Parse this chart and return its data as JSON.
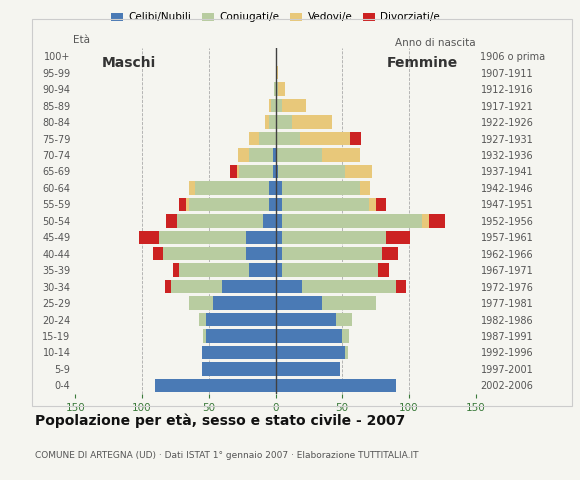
{
  "age_groups": [
    "0-4",
    "5-9",
    "10-14",
    "15-19",
    "20-24",
    "25-29",
    "30-34",
    "35-39",
    "40-44",
    "45-49",
    "50-54",
    "55-59",
    "60-64",
    "65-69",
    "70-74",
    "75-79",
    "80-84",
    "85-89",
    "90-94",
    "95-99",
    "100+"
  ],
  "birth_years": [
    "2002-2006",
    "1997-2001",
    "1992-1996",
    "1987-1991",
    "1982-1986",
    "1977-1981",
    "1972-1976",
    "1967-1971",
    "1962-1966",
    "1957-1961",
    "1952-1956",
    "1947-1951",
    "1942-1946",
    "1937-1941",
    "1932-1936",
    "1927-1931",
    "1922-1926",
    "1917-1921",
    "1912-1916",
    "1907-1911",
    "1906 o prima"
  ],
  "male_celibi": [
    90,
    55,
    55,
    52,
    52,
    47,
    40,
    20,
    22,
    22,
    9,
    5,
    5,
    2,
    2,
    0,
    0,
    0,
    0,
    0,
    0
  ],
  "male_coniugati": [
    0,
    0,
    0,
    2,
    5,
    18,
    38,
    52,
    62,
    65,
    65,
    60,
    55,
    25,
    18,
    12,
    5,
    3,
    1,
    0,
    0
  ],
  "male_vedovi": [
    0,
    0,
    0,
    0,
    0,
    0,
    0,
    0,
    0,
    0,
    0,
    2,
    5,
    2,
    8,
    8,
    3,
    2,
    0,
    0,
    0
  ],
  "male_divorziati": [
    0,
    0,
    0,
    0,
    0,
    0,
    5,
    5,
    8,
    15,
    8,
    5,
    0,
    5,
    0,
    0,
    0,
    0,
    0,
    0,
    0
  ],
  "female_nubili": [
    90,
    48,
    52,
    50,
    45,
    35,
    20,
    5,
    5,
    5,
    5,
    5,
    5,
    2,
    0,
    0,
    0,
    0,
    0,
    0,
    0
  ],
  "female_coniugate": [
    0,
    0,
    2,
    5,
    12,
    40,
    70,
    72,
    75,
    78,
    105,
    65,
    58,
    50,
    35,
    18,
    12,
    5,
    2,
    0,
    0
  ],
  "female_vedove": [
    0,
    0,
    0,
    0,
    0,
    0,
    0,
    0,
    0,
    0,
    5,
    5,
    8,
    20,
    28,
    38,
    30,
    18,
    5,
    2,
    0
  ],
  "female_divorziate": [
    0,
    0,
    0,
    0,
    0,
    0,
    8,
    8,
    12,
    18,
    12,
    8,
    0,
    0,
    0,
    8,
    0,
    0,
    0,
    0,
    0
  ],
  "colors": {
    "celibi": "#4a7ab5",
    "coniugati": "#b8cca0",
    "vedovi": "#e8c87a",
    "divorziati": "#cc2222"
  },
  "title": "Popolazione per età, sesso e stato civile - 2007",
  "subtitle": "COMUNE DI ARTEGNA (UD) · Dati ISTAT 1° gennaio 2007 · Elaborazione TUTTITALIA.IT",
  "label_maschi": "Maschi",
  "label_femmine": "Femmine",
  "label_eta": "Età",
  "label_anno": "Anno di nascita",
  "xlim": 150,
  "background_color": "#f5f5f0"
}
